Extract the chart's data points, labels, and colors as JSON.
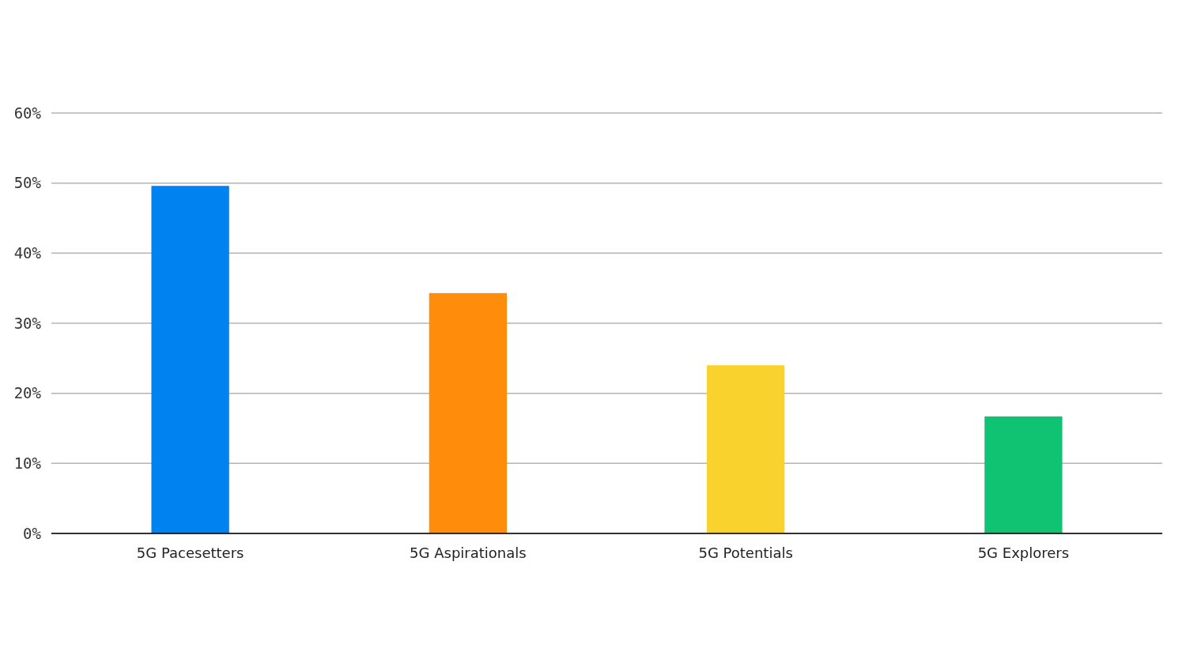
{
  "chart_data": {
    "type": "bar",
    "categories": [
      "5G Pacesetters",
      "5G Aspirationals",
      "5G Potentials",
      "5G Explorers"
    ],
    "colors": [
      "#0082f0",
      "#ff8c0a",
      "#fad22d",
      "#0fc373"
    ],
    "values": [
      49.6,
      34.3,
      24.0,
      16.7
    ],
    "ylim": [
      0,
      60
    ],
    "yticks": [
      {
        "value": 0,
        "label": "0%"
      },
      {
        "value": 10,
        "label": "10%"
      },
      {
        "value": 20,
        "label": "20%"
      },
      {
        "value": 30,
        "label": "30%"
      },
      {
        "value": 40,
        "label": "40%"
      },
      {
        "value": 50,
        "label": "50%"
      },
      {
        "value": 60,
        "label": "60%"
      }
    ],
    "grid": "y"
  }
}
